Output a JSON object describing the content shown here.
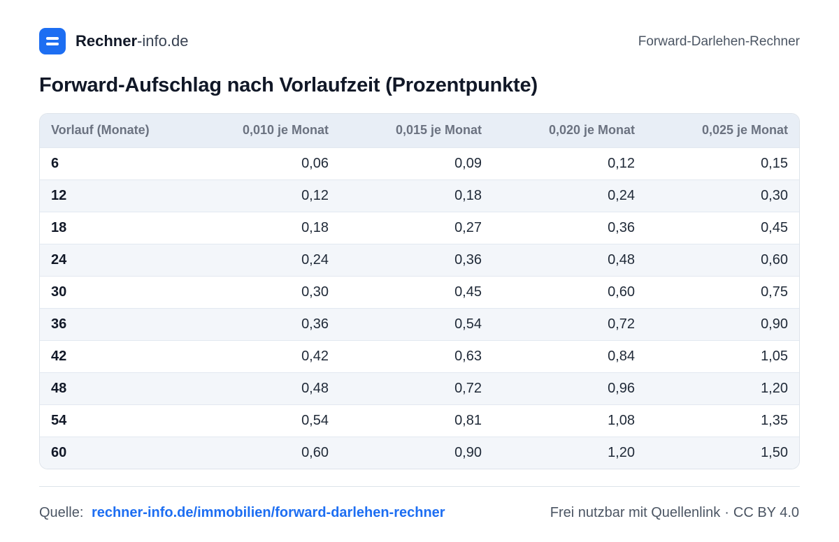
{
  "header": {
    "brand_strong": "Rechner",
    "brand_light": "-info.de",
    "tool_name": "Forward-Darlehen-Rechner"
  },
  "title": "Forward-Aufschlag nach Vorlaufzeit (Prozentpunkte)",
  "table": {
    "columns": [
      "Vorlauf (Monate)",
      "0,010 je Monat",
      "0,015 je Monat",
      "0,020 je Monat",
      "0,025 je Monat"
    ],
    "rows": [
      [
        "6",
        "0,06",
        "0,09",
        "0,12",
        "0,15"
      ],
      [
        "12",
        "0,12",
        "0,18",
        "0,24",
        "0,30"
      ],
      [
        "18",
        "0,18",
        "0,27",
        "0,36",
        "0,45"
      ],
      [
        "24",
        "0,24",
        "0,36",
        "0,48",
        "0,60"
      ],
      [
        "30",
        "0,30",
        "0,45",
        "0,60",
        "0,75"
      ],
      [
        "36",
        "0,36",
        "0,54",
        "0,72",
        "0,90"
      ],
      [
        "42",
        "0,42",
        "0,63",
        "0,84",
        "1,05"
      ],
      [
        "48",
        "0,48",
        "0,72",
        "0,96",
        "1,20"
      ],
      [
        "54",
        "0,54",
        "0,81",
        "1,08",
        "1,35"
      ],
      [
        "60",
        "0,60",
        "0,90",
        "1,20",
        "1,50"
      ]
    ]
  },
  "footer": {
    "source_label": "Quelle:",
    "source_link": "rechner-info.de/immobilien/forward-darlehen-rechner",
    "license_text": "Frei nutzbar mit Quellenlink",
    "separator": "·",
    "license": "CC BY 4.0"
  },
  "colors": {
    "brand_blue": "#1d6ef2",
    "header_row": "#e8eef6",
    "stripe_row": "#f3f6fa"
  }
}
